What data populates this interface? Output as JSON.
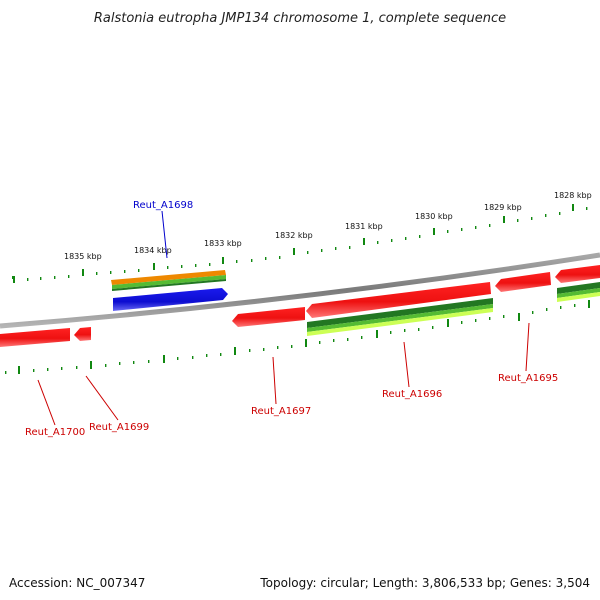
{
  "title": "Ralstonia eutropha JMP134 chromosome 1, complete sequence",
  "footer": {
    "accession": "Accession: NC_007347",
    "summary": "Topology: circular; Length: 3,806,533 bp; Genes: 3,504"
  },
  "kbp_labels": [
    "1835 kbp",
    "1834 kbp",
    "1833 kbp",
    "1832 kbp",
    "1831 kbp",
    "1830 kbp",
    "1829 kbp",
    "1828 kbp"
  ],
  "gene_labels": [
    "Reut_A1698",
    "Reut_A1700",
    "Reut_A1699",
    "Reut_A1697",
    "Reut_A1696",
    "Reut_A1695"
  ],
  "colors": {
    "gene": "#ee1111",
    "selected_gene": "#1010dd",
    "backbone": "#888888",
    "tick": "#118811",
    "label": "#cc0000",
    "selected_label": "#0000cc",
    "bar_orange": "#ee8800",
    "bar_dark_green": "#227722",
    "bar_green": "#55bb33",
    "bar_light_green": "#ccff55"
  }
}
